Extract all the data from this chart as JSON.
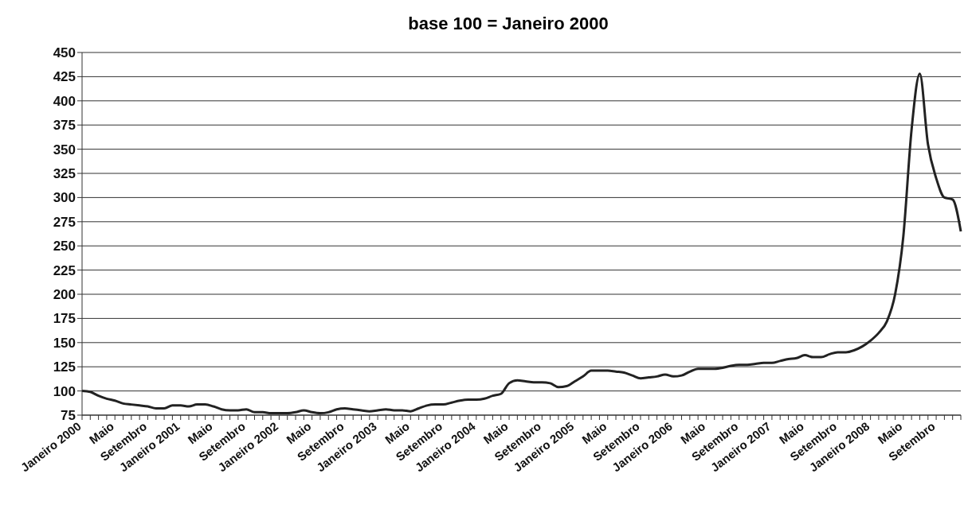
{
  "chart_data": {
    "type": "line",
    "title": "base 100 = Janeiro 2000",
    "categories": [
      "Janeiro 2000",
      null,
      null,
      null,
      "Maio",
      null,
      null,
      null,
      "Setembro",
      null,
      null,
      null,
      "Janeiro 2001",
      null,
      null,
      null,
      "Maio",
      null,
      null,
      null,
      "Setembro",
      null,
      null,
      null,
      "Janeiro 2002",
      null,
      null,
      null,
      "Maio",
      null,
      null,
      null,
      "Setembro",
      null,
      null,
      null,
      "Janeiro 2003",
      null,
      null,
      null,
      "Maio",
      null,
      null,
      null,
      "Setembro",
      null,
      null,
      null,
      "Janeiro 2004",
      null,
      null,
      null,
      "Maio",
      null,
      null,
      null,
      "Setembro",
      null,
      null,
      null,
      "Janeiro 2005",
      null,
      null,
      null,
      "Maio",
      null,
      null,
      null,
      "Setembro",
      null,
      null,
      null,
      "Janeiro 2006",
      null,
      null,
      null,
      "Maio",
      null,
      null,
      null,
      "Setembro",
      null,
      null,
      null,
      "Janeiro 2007",
      null,
      null,
      null,
      "Maio",
      null,
      null,
      null,
      "Setembro",
      null,
      null,
      null,
      "Janeiro 2008",
      null,
      null,
      null,
      "Maio",
      null,
      null,
      null,
      "Setembro",
      null,
      null,
      null
    ],
    "series": [
      {
        "color": "#222222",
        "values": [
          100,
          99,
          95,
          92,
          90,
          87,
          86,
          85,
          84,
          82,
          82,
          85,
          85,
          84,
          86,
          86,
          84,
          81,
          80,
          80,
          81,
          78,
          78,
          77,
          77,
          77,
          78,
          80,
          78,
          77,
          78,
          81,
          82,
          81,
          80,
          79,
          80,
          81,
          80,
          80,
          79,
          82,
          85,
          86,
          86,
          88,
          90,
          91,
          91,
          92,
          95,
          97,
          108,
          111,
          110,
          109,
          109,
          108,
          104,
          105,
          110,
          115,
          121,
          121,
          121,
          120,
          119,
          116,
          113,
          114,
          115,
          117,
          115,
          116,
          120,
          123,
          123,
          123,
          124,
          126,
          127,
          127,
          128,
          129,
          129,
          131,
          133,
          134,
          137,
          135,
          135,
          138,
          140,
          140,
          142,
          146,
          152,
          160,
          172,
          200,
          260,
          370,
          428,
          355,
          320,
          300,
          298,
          265
        ]
      }
    ],
    "ylim": [
      75,
      450
    ],
    "yticks": [
      75,
      100,
      125,
      150,
      175,
      200,
      225,
      250,
      275,
      300,
      325,
      350,
      375,
      400,
      425,
      450
    ],
    "grid": "y",
    "legend": false,
    "marker": "none",
    "line_style": "solid"
  }
}
